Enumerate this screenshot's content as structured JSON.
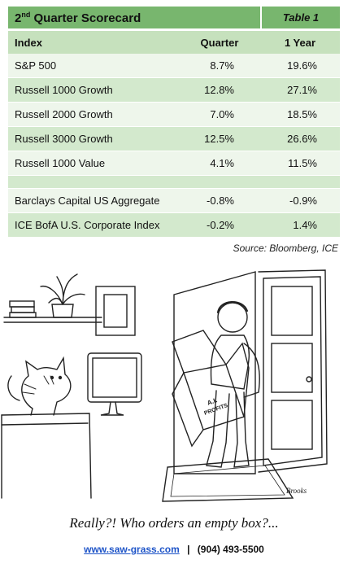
{
  "header": {
    "title_number": "2",
    "title_ordinal": "nd",
    "title_rest": " Quarter Scorecard",
    "table_label": "Table 1"
  },
  "table": {
    "columns": [
      "Index",
      "Quarter",
      "1 Year"
    ],
    "rows": [
      [
        "S&P 500",
        "8.7%",
        "19.6%"
      ],
      [
        "Russell 1000 Growth",
        "12.8%",
        "27.1%"
      ],
      [
        "Russell 2000 Growth",
        "7.0%",
        "18.5%"
      ],
      [
        "Russell 3000 Growth",
        "12.5%",
        "26.6%"
      ],
      [
        "Russell 1000 Value",
        "4.1%",
        "11.5%"
      ],
      null,
      [
        "Barclays Capital US Aggregate",
        "-0.8%",
        "-0.9%"
      ],
      [
        "ICE BofA U.S. Corporate Index",
        "-0.2%",
        "1.4%"
      ]
    ]
  },
  "source": "Source: Bloomberg, ICE",
  "cartoon": {
    "box_label_1": "A.I.",
    "box_label_2": "PROFITS",
    "signature": "Brooks"
  },
  "caption": "Really?! Who orders an empty box?...",
  "footer": {
    "website": "www.saw-grass.com",
    "separator": "|",
    "phone": "(904) 493-5500"
  }
}
